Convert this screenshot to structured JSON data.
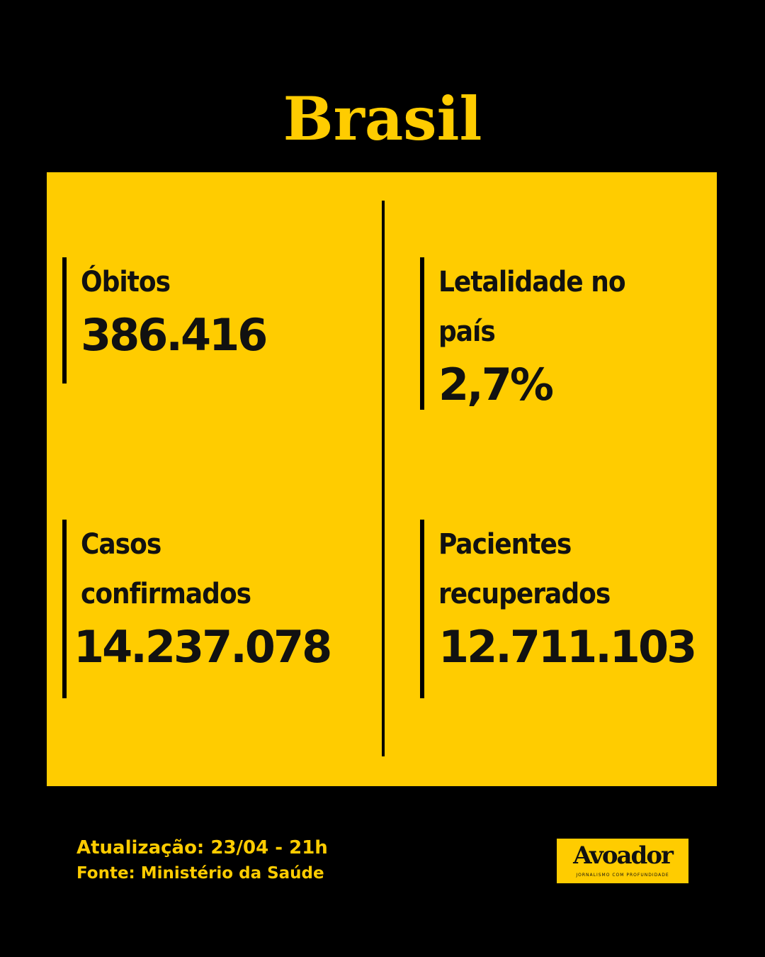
{
  "header": {
    "title": "Brasil"
  },
  "stats": [
    {
      "label": "Óbitos",
      "value": "386.416"
    },
    {
      "label": "Letalidade no país",
      "value": "2,7%"
    },
    {
      "label": "Casos confirmados",
      "value": "14.237.078"
    },
    {
      "label": "Pacientes recuperados",
      "value": "12.711.103"
    }
  ],
  "footer": {
    "update": "Atualização: 23/04 - 21h",
    "source": "Fonte: Ministério da Saúde"
  },
  "logo": {
    "name": "Avoador",
    "tagline": "JORNALISMO COM PROFUNDIDADE"
  }
}
